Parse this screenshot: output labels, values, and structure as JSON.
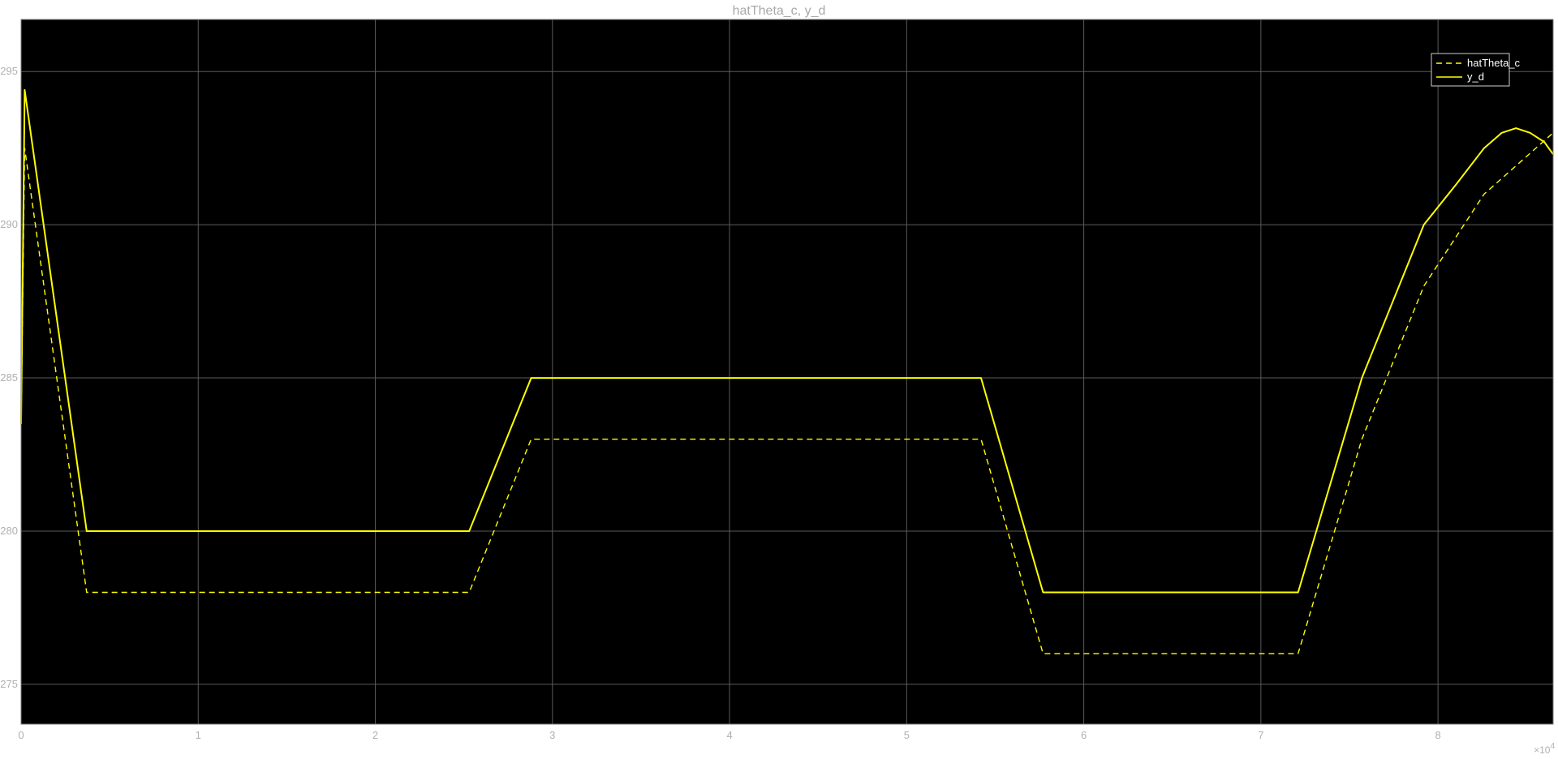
{
  "chart_data": {
    "type": "line",
    "title": "hatTheta_c, y_d",
    "xlabel": "",
    "ylabel": "",
    "xlim": [
      0,
      86500
    ],
    "ylim": [
      273.7,
      296.7
    ],
    "x_ticks": [
      0,
      10000,
      20000,
      30000,
      40000,
      50000,
      60000,
      70000,
      80000
    ],
    "x_tick_labels": [
      "0",
      "1",
      "2",
      "3",
      "4",
      "5",
      "6",
      "7",
      "8"
    ],
    "x_exponent_label": {
      "base": "×10",
      "power": "4"
    },
    "y_ticks": [
      275,
      280,
      285,
      290,
      295
    ],
    "y_tick_labels": [
      "275",
      "280",
      "285",
      "290",
      "295"
    ],
    "grid": true,
    "legend_position": "top-right",
    "background_color": "#000000",
    "grid_color": "#5a5a5a",
    "series": [
      {
        "name": "hatTheta_c",
        "style": "dashed",
        "color": "#ffff00",
        "points": [
          [
            0,
            283.5
          ],
          [
            200,
            292.5
          ],
          [
            3700,
            278
          ],
          [
            25300,
            278
          ],
          [
            28800,
            283
          ],
          [
            54200,
            283
          ],
          [
            57700,
            276
          ],
          [
            72100,
            276
          ],
          [
            75700,
            283
          ],
          [
            79200,
            288
          ],
          [
            82600,
            291
          ],
          [
            86500,
            293
          ]
        ]
      },
      {
        "name": "y_d",
        "style": "solid",
        "color": "#ffff00",
        "points": [
          [
            0,
            283.5
          ],
          [
            200,
            294.4
          ],
          [
            3700,
            280
          ],
          [
            25300,
            280
          ],
          [
            28800,
            285
          ],
          [
            54200,
            285
          ],
          [
            57700,
            278
          ],
          [
            72100,
            278
          ],
          [
            75700,
            285
          ],
          [
            79200,
            290
          ],
          [
            81000,
            291.3
          ],
          [
            82600,
            292.5
          ],
          [
            83600,
            293
          ],
          [
            84400,
            293.15
          ],
          [
            85200,
            293
          ],
          [
            86000,
            292.7
          ],
          [
            86500,
            292.3
          ]
        ]
      }
    ]
  }
}
